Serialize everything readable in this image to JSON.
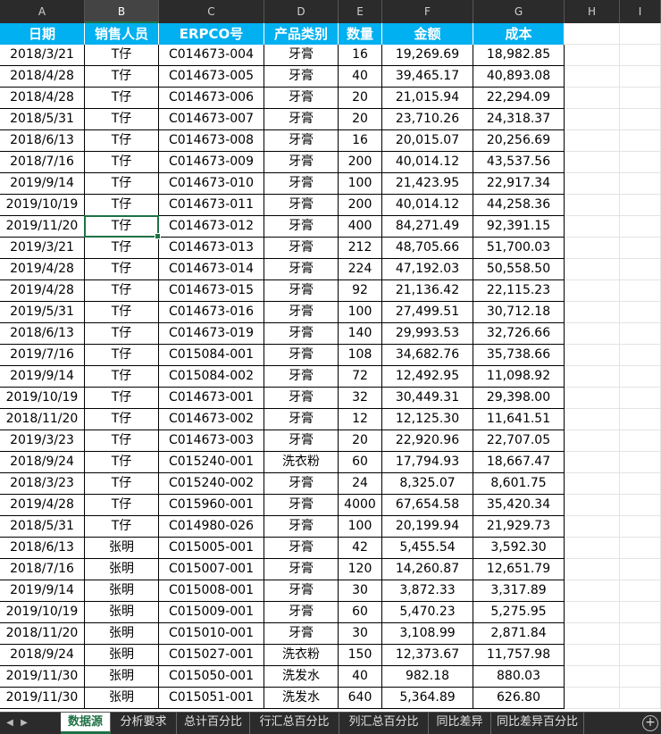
{
  "columns": [
    "A",
    "B",
    "C",
    "D",
    "E",
    "F",
    "G",
    "H",
    "I"
  ],
  "active_column": "B",
  "headers": [
    "日期",
    "销售人员",
    "ERPCO号",
    "产品类别",
    "数量",
    "金额",
    "成本"
  ],
  "rows": [
    [
      "2018/3/21",
      "T仔",
      "C014673-004",
      "牙膏",
      "16",
      "19,269.69",
      "18,982.85"
    ],
    [
      "2018/4/28",
      "T仔",
      "C014673-005",
      "牙膏",
      "40",
      "39,465.17",
      "40,893.08"
    ],
    [
      "2018/4/28",
      "T仔",
      "C014673-006",
      "牙膏",
      "20",
      "21,015.94",
      "22,294.09"
    ],
    [
      "2018/5/31",
      "T仔",
      "C014673-007",
      "牙膏",
      "20",
      "23,710.26",
      "24,318.37"
    ],
    [
      "2018/6/13",
      "T仔",
      "C014673-008",
      "牙膏",
      "16",
      "20,015.07",
      "20,256.69"
    ],
    [
      "2018/7/16",
      "T仔",
      "C014673-009",
      "牙膏",
      "200",
      "40,014.12",
      "43,537.56"
    ],
    [
      "2019/9/14",
      "T仔",
      "C014673-010",
      "牙膏",
      "100",
      "21,423.95",
      "22,917.34"
    ],
    [
      "2019/10/19",
      "T仔",
      "C014673-011",
      "牙膏",
      "200",
      "40,014.12",
      "44,258.36"
    ],
    [
      "2019/11/20",
      "T仔",
      "C014673-012",
      "牙膏",
      "400",
      "84,271.49",
      "92,391.15"
    ],
    [
      "2019/3/21",
      "T仔",
      "C014673-013",
      "牙膏",
      "212",
      "48,705.66",
      "51,700.03"
    ],
    [
      "2019/4/28",
      "T仔",
      "C014673-014",
      "牙膏",
      "224",
      "47,192.03",
      "50,558.50"
    ],
    [
      "2019/4/28",
      "T仔",
      "C014673-015",
      "牙膏",
      "92",
      "21,136.42",
      "22,115.23"
    ],
    [
      "2019/5/31",
      "T仔",
      "C014673-016",
      "牙膏",
      "100",
      "27,499.51",
      "30,712.18"
    ],
    [
      "2018/6/13",
      "T仔",
      "C014673-019",
      "牙膏",
      "140",
      "29,993.53",
      "32,726.66"
    ],
    [
      "2019/7/16",
      "T仔",
      "C015084-001",
      "牙膏",
      "108",
      "34,682.76",
      "35,738.66"
    ],
    [
      "2019/9/14",
      "T仔",
      "C015084-002",
      "牙膏",
      "72",
      "12,492.95",
      "11,098.92"
    ],
    [
      "2019/10/19",
      "T仔",
      "C014673-001",
      "牙膏",
      "32",
      "30,449.31",
      "29,398.00"
    ],
    [
      "2018/11/20",
      "T仔",
      "C014673-002",
      "牙膏",
      "12",
      "12,125.30",
      "11,641.51"
    ],
    [
      "2019/3/23",
      "T仔",
      "C014673-003",
      "牙膏",
      "20",
      "22,920.96",
      "22,707.05"
    ],
    [
      "2018/9/24",
      "T仔",
      "C015240-001",
      "洗衣粉",
      "60",
      "17,794.93",
      "18,667.47"
    ],
    [
      "2018/3/23",
      "T仔",
      "C015240-002",
      "牙膏",
      "24",
      "8,325.07",
      "8,601.75"
    ],
    [
      "2019/4/28",
      "T仔",
      "C015960-001",
      "牙膏",
      "4000",
      "67,654.58",
      "35,420.34"
    ],
    [
      "2018/5/31",
      "T仔",
      "C014980-026",
      "牙膏",
      "100",
      "20,199.94",
      "21,929.73"
    ],
    [
      "2018/6/13",
      "张明",
      "C015005-001",
      "牙膏",
      "42",
      "5,455.54",
      "3,592.30"
    ],
    [
      "2018/7/16",
      "张明",
      "C015007-001",
      "牙膏",
      "120",
      "14,260.87",
      "12,651.79"
    ],
    [
      "2019/9/14",
      "张明",
      "C015008-001",
      "牙膏",
      "30",
      "3,872.33",
      "3,317.89"
    ],
    [
      "2019/10/19",
      "张明",
      "C015009-001",
      "牙膏",
      "60",
      "5,470.23",
      "5,275.95"
    ],
    [
      "2018/11/20",
      "张明",
      "C015010-001",
      "牙膏",
      "30",
      "3,108.99",
      "2,871.84"
    ],
    [
      "2018/9/24",
      "张明",
      "C015027-001",
      "洗衣粉",
      "150",
      "12,373.67",
      "11,757.98"
    ],
    [
      "2019/11/30",
      "张明",
      "C015050-001",
      "洗发水",
      "40",
      "982.18",
      "880.03"
    ],
    [
      "2019/11/30",
      "张明",
      "C015051-001",
      "洗发水",
      "640",
      "5,364.89",
      "626.80"
    ]
  ],
  "selected_cell": "B10",
  "sheet_tabs": [
    "数据源",
    "分析要求",
    "总计百分比",
    "行汇总百分比",
    "列汇总百分比",
    "同比差异",
    "同比差异百分比"
  ],
  "active_tab": "数据源",
  "nav_left_icon": "◀",
  "nav_right_icon": "▶",
  "add_sheet_icon": "+",
  "colors": {
    "header_fill": "#00b0f0",
    "header_text": "#ffffff",
    "accent": "#1e7145",
    "chrome": "#2b2b2b"
  }
}
